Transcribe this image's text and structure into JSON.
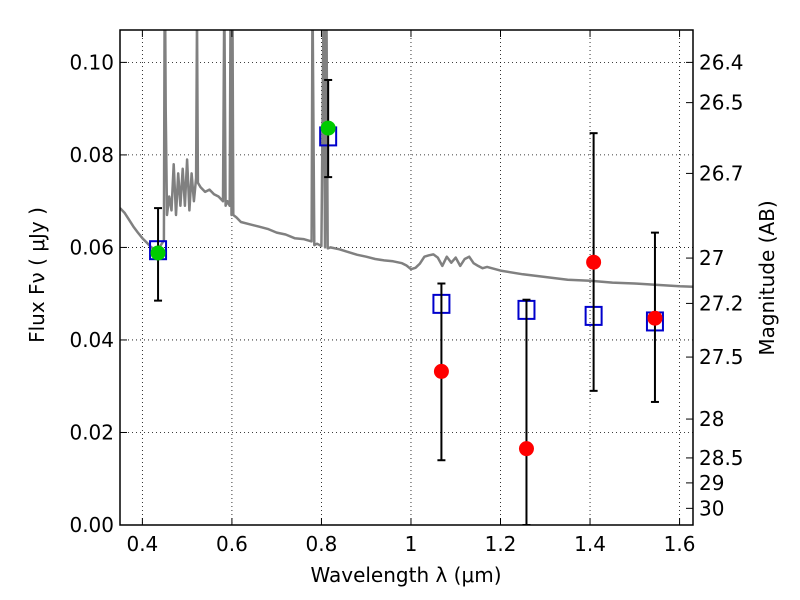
{
  "chart_data": {
    "type": "scatter",
    "xlabel": "Wavelength  λ (μm)",
    "ylabel": "Flux  Fν ( μJy )",
    "y2label": "Magnitude (AB)",
    "xlim": [
      0.35,
      1.63
    ],
    "ylim": [
      0.0,
      0.107
    ],
    "grid": true,
    "x_ticks": [
      0.4,
      0.6,
      0.8,
      1.0,
      1.2,
      1.4,
      1.6
    ],
    "x_tick_labels": [
      "0.4",
      "0.6",
      "0.8",
      "1",
      "1.2",
      "1.4",
      "1.6"
    ],
    "y_ticks": [
      0.0,
      0.02,
      0.04,
      0.06,
      0.08,
      0.1
    ],
    "y_tick_labels": [
      "0.00",
      "0.02",
      "0.04",
      "0.06",
      "0.08",
      "0.10"
    ],
    "y2_ticks": [
      {
        "label": "26.4",
        "flux": 0.1
      },
      {
        "label": "26.5",
        "flux": 0.0913
      },
      {
        "label": "26.7",
        "flux": 0.076
      },
      {
        "label": "27",
        "flux": 0.0577
      },
      {
        "label": "27.2",
        "flux": 0.0479
      },
      {
        "label": "27.5",
        "flux": 0.0363
      },
      {
        "label": "28",
        "flux": 0.0229
      },
      {
        "label": "28.5",
        "flux": 0.0145
      },
      {
        "label": "29",
        "flux": 0.0091
      },
      {
        "label": "30",
        "flux": 0.0036
      }
    ],
    "colors": {
      "model": "#808080",
      "predicted": "#0000cc",
      "observed": "#ff0000",
      "observed_other": "#00cc00",
      "errorbar": "#000000"
    },
    "series": [
      {
        "kind": "line",
        "values": [
          [
            0.35,
            0.0685
          ],
          [
            0.36,
            0.0675
          ],
          [
            0.37,
            0.066
          ],
          [
            0.38,
            0.0645
          ],
          [
            0.39,
            0.0632
          ],
          [
            0.4,
            0.062
          ],
          [
            0.41,
            0.061
          ],
          [
            0.42,
            0.06
          ],
          [
            0.43,
            0.0596
          ],
          [
            0.44,
            0.0603
          ],
          [
            0.448,
            0.0615
          ],
          [
            0.449,
            0.09
          ],
          [
            0.45,
            0.125
          ],
          [
            0.452,
            0.09
          ],
          [
            0.455,
            0.067
          ],
          [
            0.46,
            0.071
          ],
          [
            0.465,
            0.068
          ],
          [
            0.47,
            0.078
          ],
          [
            0.475,
            0.067
          ],
          [
            0.48,
            0.076
          ],
          [
            0.485,
            0.069
          ],
          [
            0.49,
            0.077
          ],
          [
            0.495,
            0.069
          ],
          [
            0.5,
            0.079
          ],
          [
            0.505,
            0.068
          ],
          [
            0.51,
            0.076
          ],
          [
            0.515,
            0.07
          ],
          [
            0.52,
            0.075
          ],
          [
            0.522,
            0.11
          ],
          [
            0.524,
            0.074
          ],
          [
            0.53,
            0.073
          ],
          [
            0.54,
            0.072
          ],
          [
            0.55,
            0.0725
          ],
          [
            0.56,
            0.0715
          ],
          [
            0.57,
            0.071
          ],
          [
            0.58,
            0.07
          ],
          [
            0.583,
            0.115
          ],
          [
            0.586,
            0.069
          ],
          [
            0.59,
            0.07
          ],
          [
            0.595,
            0.069
          ],
          [
            0.597,
            0.115
          ],
          [
            0.599,
            0.067
          ],
          [
            0.601,
            0.115
          ],
          [
            0.603,
            0.067
          ],
          [
            0.61,
            0.0665
          ],
          [
            0.62,
            0.0655
          ],
          [
            0.64,
            0.065
          ],
          [
            0.66,
            0.0645
          ],
          [
            0.68,
            0.064
          ],
          [
            0.7,
            0.0632
          ],
          [
            0.72,
            0.0628
          ],
          [
            0.74,
            0.062
          ],
          [
            0.76,
            0.0618
          ],
          [
            0.778,
            0.0613
          ],
          [
            0.78,
            0.115
          ],
          [
            0.784,
            0.0605
          ],
          [
            0.79,
            0.0608
          ],
          [
            0.8,
            0.0603
          ],
          [
            0.805,
            0.115
          ],
          [
            0.808,
            0.06
          ],
          [
            0.811,
            0.115
          ],
          [
            0.814,
            0.0598
          ],
          [
            0.82,
            0.06
          ],
          [
            0.84,
            0.0596
          ],
          [
            0.86,
            0.059
          ],
          [
            0.88,
            0.0584
          ],
          [
            0.9,
            0.058
          ],
          [
            0.92,
            0.0575
          ],
          [
            0.94,
            0.0572
          ],
          [
            0.96,
            0.057
          ],
          [
            0.98,
            0.0566
          ],
          [
            0.99,
            0.0561
          ],
          [
            1.0,
            0.0553
          ],
          [
            1.01,
            0.0556
          ],
          [
            1.02,
            0.0565
          ],
          [
            1.03,
            0.058
          ],
          [
            1.04,
            0.0583
          ],
          [
            1.05,
            0.0585
          ],
          [
            1.06,
            0.0578
          ],
          [
            1.07,
            0.056
          ],
          [
            1.08,
            0.058
          ],
          [
            1.09,
            0.0567
          ],
          [
            1.1,
            0.0578
          ],
          [
            1.11,
            0.056
          ],
          [
            1.12,
            0.0575
          ],
          [
            1.13,
            0.058
          ],
          [
            1.14,
            0.0566
          ],
          [
            1.15,
            0.056
          ],
          [
            1.16,
            0.0555
          ],
          [
            1.17,
            0.0558
          ],
          [
            1.2,
            0.055
          ],
          [
            1.25,
            0.0542
          ],
          [
            1.3,
            0.0536
          ],
          [
            1.35,
            0.053
          ],
          [
            1.4,
            0.0528
          ],
          [
            1.45,
            0.0524
          ],
          [
            1.5,
            0.0522
          ],
          [
            1.55,
            0.0519
          ],
          [
            1.6,
            0.0516
          ],
          [
            1.63,
            0.0515
          ]
        ]
      },
      {
        "kind": "square",
        "x": [
          0.435,
          0.815,
          1.068,
          1.258,
          1.408,
          1.545
        ],
        "y": [
          0.0594,
          0.084,
          0.0478,
          0.0465,
          0.0452,
          0.044
        ]
      },
      {
        "kind": "circle",
        "color_key": "observed_other",
        "x": [
          0.435,
          0.815
        ],
        "y": [
          0.0588,
          0.0858
        ],
        "err_low": [
          0.0485,
          0.0752
        ],
        "err_high": [
          0.0685,
          0.0962
        ]
      },
      {
        "kind": "circle",
        "color_key": "observed",
        "x": [
          1.068,
          1.258,
          1.408,
          1.545
        ],
        "y": [
          0.0332,
          0.0165,
          0.0568,
          0.0447
        ],
        "err_low": [
          0.014,
          0.0,
          0.029,
          0.0266
        ],
        "err_high": [
          0.0522,
          0.0487,
          0.0847,
          0.0632
        ]
      }
    ]
  }
}
